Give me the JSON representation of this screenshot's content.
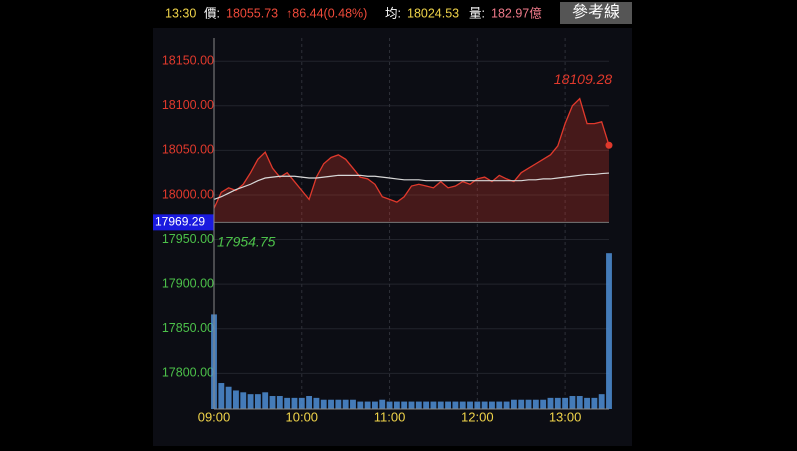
{
  "header": {
    "time": "13:30",
    "price_label": "價:",
    "price": "18055.73",
    "change": "↑86.44(0.48%)",
    "avg_label": "均:",
    "avg": "18024.53",
    "volume_label": "量:",
    "volume": "182.97億",
    "button": "參考線"
  },
  "chart_data": {
    "type": "line",
    "x": [
      0,
      5,
      10,
      15,
      20,
      25,
      30,
      35,
      40,
      45,
      50,
      55,
      60,
      65,
      70,
      75,
      80,
      85,
      90,
      95,
      100,
      105,
      110,
      115,
      120,
      125,
      130,
      135,
      140,
      145,
      150,
      155,
      160,
      165,
      170,
      175,
      180,
      185,
      190,
      195,
      200,
      205,
      210,
      215,
      220,
      225,
      230,
      235,
      240,
      245,
      250,
      255,
      260,
      265,
      270
    ],
    "xlim": [
      0,
      270
    ],
    "xticks": [
      {
        "value": 0,
        "label": "09:00"
      },
      {
        "value": 60,
        "label": "10:00"
      },
      {
        "value": 120,
        "label": "11:00"
      },
      {
        "value": 180,
        "label": "12:00"
      },
      {
        "value": 240,
        "label": "13:00"
      }
    ],
    "ylim": [
      17760,
      18176
    ],
    "yticks": [
      {
        "value": 17800,
        "label": "17800.00"
      },
      {
        "value": 17850,
        "label": "17850.00"
      },
      {
        "value": 17900,
        "label": "17900.00"
      },
      {
        "value": 17950,
        "label": "17950.00"
      },
      {
        "value": 18000,
        "label": "18000.00"
      },
      {
        "value": 18050,
        "label": "18050.00"
      },
      {
        "value": 18100,
        "label": "18100.00"
      },
      {
        "value": 18150,
        "label": "18150.00"
      }
    ],
    "reference": 17969.29,
    "grid": true,
    "series": [
      {
        "name": "價",
        "color": "#e0392c",
        "values": [
          17985,
          18003,
          18008,
          18005,
          18012,
          18025,
          18040,
          18048,
          18030,
          18020,
          18025,
          18015,
          18005,
          17995,
          18020,
          18035,
          18042,
          18045,
          18040,
          18030,
          18020,
          18018,
          18012,
          17998,
          17995,
          17992,
          17998,
          18010,
          18012,
          18010,
          18008,
          18015,
          18008,
          18010,
          18015,
          18012,
          18018,
          18020,
          18015,
          18022,
          18018,
          18015,
          18025,
          18030,
          18035,
          18040,
          18045,
          18055,
          18080,
          18100,
          18108,
          18080,
          18080,
          18082,
          18055.73
        ]
      },
      {
        "name": "均",
        "color": "#d8d8d8",
        "values": [
          17995,
          17998,
          18002,
          18006,
          18009,
          18012,
          18016,
          18019,
          18020,
          18021,
          18021,
          18021,
          18020,
          18019,
          18019,
          18020,
          18021,
          18022,
          18022,
          18022,
          18022,
          18021,
          18021,
          18020,
          18019,
          18018,
          18017,
          18017,
          18017,
          18016,
          18016,
          18016,
          18016,
          18016,
          18016,
          18016,
          18016,
          18016,
          18016,
          18016,
          18016,
          18016,
          18016,
          18017,
          18017,
          18018,
          18018,
          18019,
          18020,
          18021,
          18022,
          18023,
          18023,
          18024,
          18024.53
        ]
      },
      {
        "name": "量",
        "color": "#4f8fd6",
        "axis": "y2",
        "values": [
          51,
          14,
          12,
          10,
          9,
          8,
          8,
          9,
          7,
          7,
          6,
          6,
          6,
          7,
          6,
          5,
          5,
          5,
          5,
          5,
          4,
          4,
          4,
          5,
          4,
          4,
          4,
          4,
          4,
          4,
          4,
          4,
          4,
          4,
          4,
          4,
          4,
          4,
          4,
          4,
          4,
          5,
          5,
          5,
          5,
          5,
          6,
          6,
          6,
          7,
          7,
          6,
          6,
          8,
          84
        ]
      }
    ],
    "y2lim": [
      0,
      200
    ],
    "annotations": [
      {
        "text": "18109.28",
        "value": 18109.28
      },
      {
        "text": "17954.75",
        "value": 17954.75
      },
      {
        "text": "17969.29",
        "value": 17969.29
      }
    ]
  }
}
